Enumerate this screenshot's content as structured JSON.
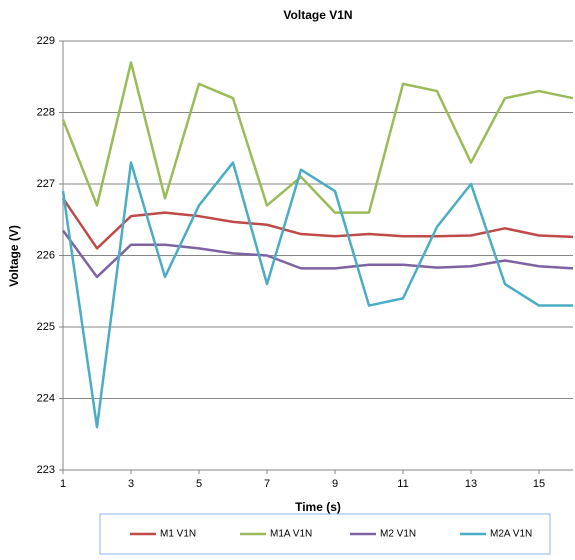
{
  "chart_data": {
    "type": "line",
    "title": "Voltage V1N",
    "x_label": "Time (s)",
    "y_label": "Voltage (V)",
    "x": [
      1,
      2,
      3,
      4,
      5,
      6,
      7,
      8,
      9,
      10,
      11,
      12,
      13,
      14,
      15,
      16
    ],
    "xlim": [
      1,
      16
    ],
    "xticks": [
      1,
      3,
      5,
      7,
      9,
      11,
      13,
      15
    ],
    "ylim": [
      223,
      229
    ],
    "yticks": [
      223,
      224,
      225,
      226,
      227,
      228,
      229
    ],
    "grid": true,
    "legend": "bottom",
    "series": [
      {
        "name": "M1 V1N",
        "color": "#be4b48",
        "values": [
          226.8,
          226.1,
          226.55,
          226.6,
          226.55,
          226.47,
          226.43,
          226.3,
          226.27,
          226.3,
          226.27,
          226.27,
          226.28,
          226.38,
          226.28,
          226.26
        ]
      },
      {
        "name": "M1A V1N",
        "color": "#9bbb59",
        "values": [
          227.9,
          226.7,
          228.7,
          226.8,
          228.4,
          228.2,
          226.7,
          227.1,
          226.6,
          226.6,
          228.4,
          228.3,
          227.3,
          228.2,
          228.3,
          228.2
        ]
      },
      {
        "name": "M2 V1N",
        "color": "#7e62a1",
        "values": [
          226.35,
          225.7,
          226.15,
          226.15,
          226.1,
          226.03,
          226.0,
          225.82,
          225.82,
          225.87,
          225.87,
          225.83,
          225.85,
          225.93,
          225.85,
          225.82
        ]
      },
      {
        "name": "M2A V1N",
        "color": "#4bacc6",
        "values": [
          226.9,
          223.6,
          227.3,
          225.7,
          226.7,
          227.3,
          225.6,
          227.2,
          226.9,
          225.3,
          225.4,
          226.4,
          227.0,
          225.6,
          225.3,
          225.3
        ]
      }
    ]
  }
}
